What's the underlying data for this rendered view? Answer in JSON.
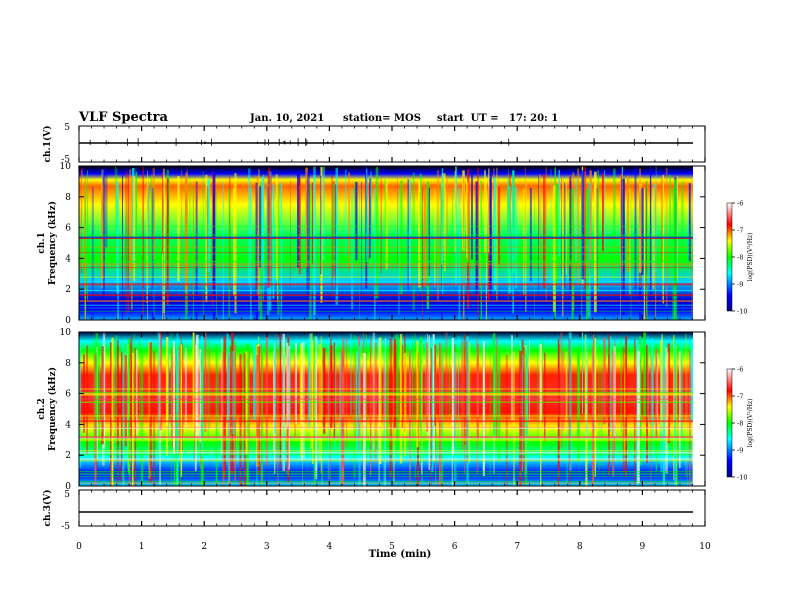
{
  "header": {
    "title": "VLF Spectra",
    "date": "Jan. 10, 2021",
    "station": "station= MOS",
    "start": "start  UT =   17: 20: 1"
  },
  "chart_data": [
    {
      "type": "line",
      "panel": "ch1-waveform",
      "ylabel": "ch.1(V)",
      "ylim": [
        -5,
        5
      ],
      "yticks": [
        "5",
        "-5"
      ],
      "description_values": {
        "baseline": 0
      }
    },
    {
      "type": "heatmap",
      "panel": "ch1-spectrogram",
      "ylabel": "ch.1\nFrequency (kHz)",
      "ylabel_top": "ch.1",
      "ylabel_bottom": "Frequency (kHz)",
      "ylim": [
        0,
        10
      ],
      "yticks": [
        "0",
        "2",
        "4",
        "6",
        "8",
        "10"
      ],
      "colorbar": {
        "label": "log(PSD)(V²/Hz)",
        "range": [
          -10,
          -6
        ],
        "ticks": [
          "-6",
          "-7",
          "-8",
          "-9",
          "-10"
        ]
      }
    },
    {
      "type": "heatmap",
      "panel": "ch2-spectrogram",
      "ylabel_top": "ch.2",
      "ylabel_bottom": "Frequency (kHz)",
      "ylim": [
        0,
        10
      ],
      "yticks": [
        "0",
        "2",
        "4",
        "6",
        "8",
        "10"
      ],
      "colorbar": {
        "label": "log(PSD)(V²/Hz)",
        "range": [
          -10,
          -6
        ],
        "ticks": [
          "-6",
          "-7",
          "-8",
          "-9",
          "-10"
        ]
      }
    },
    {
      "type": "line",
      "panel": "ch3-waveform",
      "ylabel": "ch.3(V)",
      "ylim": [
        -5,
        5
      ],
      "yticks": [
        "5",
        "-5"
      ]
    }
  ],
  "xaxis": {
    "label": "Time (min)",
    "range": [
      0,
      10
    ],
    "ticks": [
      "0",
      "1",
      "2",
      "3",
      "4",
      "5",
      "6",
      "7",
      "8",
      "9",
      "10"
    ]
  },
  "colors": {
    "jet": [
      "#000080",
      "#0000ff",
      "#00ffff",
      "#00ff00",
      "#ffff00",
      "#ff0000",
      "#ffffff"
    ]
  }
}
